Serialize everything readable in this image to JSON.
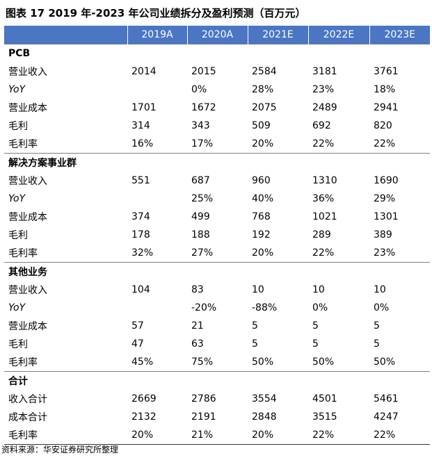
{
  "title": "图表 17 2019 年-2023 年公司业绩拆分及盈利预测（百万元）",
  "table": {
    "header": [
      null,
      "2019A",
      "2020A",
      "2021E",
      "2022E",
      "2023E"
    ],
    "sections": [
      {
        "name": "PCB",
        "rows": [
          {
            "label": "营业收入",
            "cells": [
              "2014",
              "2015",
              "2584",
              "3181",
              "3761"
            ]
          },
          {
            "label": "YoY",
            "cells": [
              null,
              "0%",
              "28%",
              "23%",
              "18%"
            ]
          },
          {
            "label": "营业成本",
            "cells": [
              "1701",
              "1672",
              "2075",
              "2489",
              "2941"
            ]
          },
          {
            "label": "毛利",
            "cells": [
              "314",
              "343",
              "509",
              "692",
              "820"
            ]
          },
          {
            "label": "毛利率",
            "cells": [
              "16%",
              "17%",
              "20%",
              "22%",
              "22%"
            ]
          }
        ]
      },
      {
        "name": "解决方案事业群",
        "rows": [
          {
            "label": "营业收入",
            "cells": [
              "551",
              "687",
              "960",
              "1310",
              "1690"
            ]
          },
          {
            "label": "YoY",
            "cells": [
              null,
              "25%",
              "40%",
              "36%",
              "29%"
            ]
          },
          {
            "label": "营业成本",
            "cells": [
              "374",
              "499",
              "768",
              "1021",
              "1301"
            ]
          },
          {
            "label": "毛利",
            "cells": [
              "178",
              "188",
              "192",
              "289",
              "389"
            ]
          },
          {
            "label": "毛利率",
            "cells": [
              "32%",
              "27%",
              "20%",
              "22%",
              "23%"
            ]
          }
        ]
      },
      {
        "name": "其他业务",
        "rows": [
          {
            "label": "营业收入",
            "cells": [
              "104",
              "83",
              "10",
              "10",
              "10"
            ]
          },
          {
            "label": "YoY",
            "cells": [
              null,
              "-20%",
              "-88%",
              "0%",
              "0%"
            ]
          },
          {
            "label": "营业成本",
            "cells": [
              "57",
              "21",
              "5",
              "5",
              "5"
            ]
          },
          {
            "label": "毛利",
            "cells": [
              "47",
              "63",
              "5",
              "5",
              "5"
            ]
          },
          {
            "label": "毛利率",
            "cells": [
              "45%",
              "75%",
              "50%",
              "50%",
              "50%"
            ]
          }
        ]
      },
      {
        "name": "合计",
        "rows": [
          {
            "label": "收入合计",
            "cells": [
              "2669",
              "2786",
              "3554",
              "4501",
              "5461"
            ]
          },
          {
            "label": "成本合计",
            "cells": [
              "2132",
              "2191",
              "2848",
              "3515",
              "4247"
            ]
          },
          {
            "label": "毛利率",
            "cells": [
              "20%",
              "21%",
              "20%",
              "22%",
              "22%"
            ]
          }
        ]
      }
    ]
  },
  "source": "资料来源：华安证券研究所整理"
}
